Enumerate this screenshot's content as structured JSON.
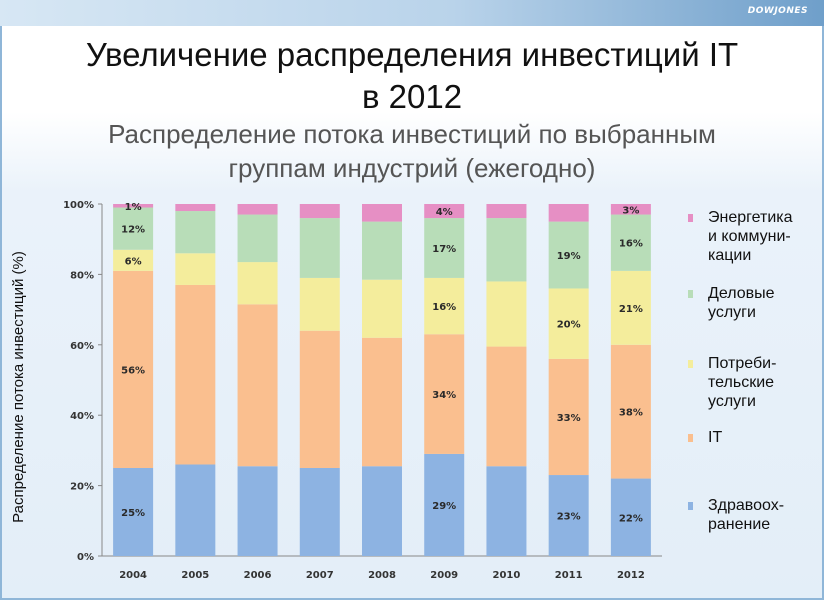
{
  "header": {
    "brand": "DOWJONES",
    "title_line1": "Увеличение распределения инвестиций IT",
    "title_line2": "в 2012",
    "subtitle_line1": "Распределение потока инвестиций по выбранным",
    "subtitle_line2": "группам индустрий (ежегодно)"
  },
  "colors": {
    "health": "#8db3e2",
    "it": "#fabf8f",
    "consumer": "#f4ed9c",
    "business": "#b8ddb8",
    "energy": "#e68fc4"
  },
  "legend": {
    "energy_line1": "Энергетика",
    "energy_line2": "и коммуни-",
    "energy_line3": "кации",
    "business_line1": "Деловые",
    "business_line2": "услуги",
    "consumer_line1": "Потреби-",
    "consumer_line2": "тельские",
    "consumer_line3": "услуги",
    "it_line1": "IT",
    "health_line1": "Здравоох-",
    "health_line2": "ранение"
  },
  "chart_data": {
    "type": "bar",
    "stacked": true,
    "title": "",
    "xlabel": "",
    "ylabel": "Распределение потока инвестиций (%)",
    "ylim": [
      0,
      100
    ],
    "yticks": [
      "0%",
      "20%",
      "40%",
      "60%",
      "80%",
      "100%"
    ],
    "grid": false,
    "legend_position": "right",
    "categories": [
      "2004",
      "2005",
      "2006",
      "2007",
      "2008",
      "2009",
      "2010",
      "2011",
      "2012"
    ],
    "series": [
      {
        "name": "Здравоохранение",
        "values": [
          25,
          26,
          25.5,
          25,
          25.5,
          29,
          25.5,
          23,
          22
        ]
      },
      {
        "name": "IT",
        "values": [
          56,
          51,
          46,
          39,
          36.5,
          34,
          34,
          33,
          38
        ]
      },
      {
        "name": "Потребительские услуги",
        "values": [
          6,
          9,
          12,
          15,
          16.5,
          16,
          18.5,
          20,
          21
        ]
      },
      {
        "name": "Деловые услуги",
        "values": [
          12,
          12,
          13.5,
          17,
          16.5,
          17,
          18,
          19,
          16
        ]
      },
      {
        "name": "Энергетика и коммуникации",
        "values": [
          1,
          2,
          3,
          4,
          5,
          4,
          4,
          5,
          3
        ]
      }
    ],
    "data_labels": [
      {
        "category": "2004",
        "series": "Здравоохранение",
        "text": "25%"
      },
      {
        "category": "2004",
        "series": "IT",
        "text": "56%"
      },
      {
        "category": "2004",
        "series": "Потребительские услуги",
        "text": "6%"
      },
      {
        "category": "2004",
        "series": "Деловые услуги",
        "text": "12%"
      },
      {
        "category": "2004",
        "series": "Энергетика и коммуникации",
        "text": "1%"
      },
      {
        "category": "2009",
        "series": "Здравоохранение",
        "text": "29%"
      },
      {
        "category": "2009",
        "series": "IT",
        "text": "34%"
      },
      {
        "category": "2009",
        "series": "Потребительские услуги",
        "text": "16%"
      },
      {
        "category": "2009",
        "series": "Деловые услуги",
        "text": "17%"
      },
      {
        "category": "2009",
        "series": "Энергетика и коммуникации",
        "text": "4%"
      },
      {
        "category": "2011",
        "series": "Здравоохранение",
        "text": "23%"
      },
      {
        "category": "2011",
        "series": "IT",
        "text": "33%"
      },
      {
        "category": "2011",
        "series": "Потребительские услуги",
        "text": "20%"
      },
      {
        "category": "2011",
        "series": "Деловые услуги",
        "text": "19%"
      },
      {
        "category": "2012",
        "series": "Здравоохранение",
        "text": "22%"
      },
      {
        "category": "2012",
        "series": "IT",
        "text": "38%"
      },
      {
        "category": "2012",
        "series": "Потребительские услуги",
        "text": "21%"
      },
      {
        "category": "2012",
        "series": "Деловые услуги",
        "text": "16%"
      },
      {
        "category": "2012",
        "series": "Энергетика и коммуникации",
        "text": "3%"
      }
    ]
  }
}
